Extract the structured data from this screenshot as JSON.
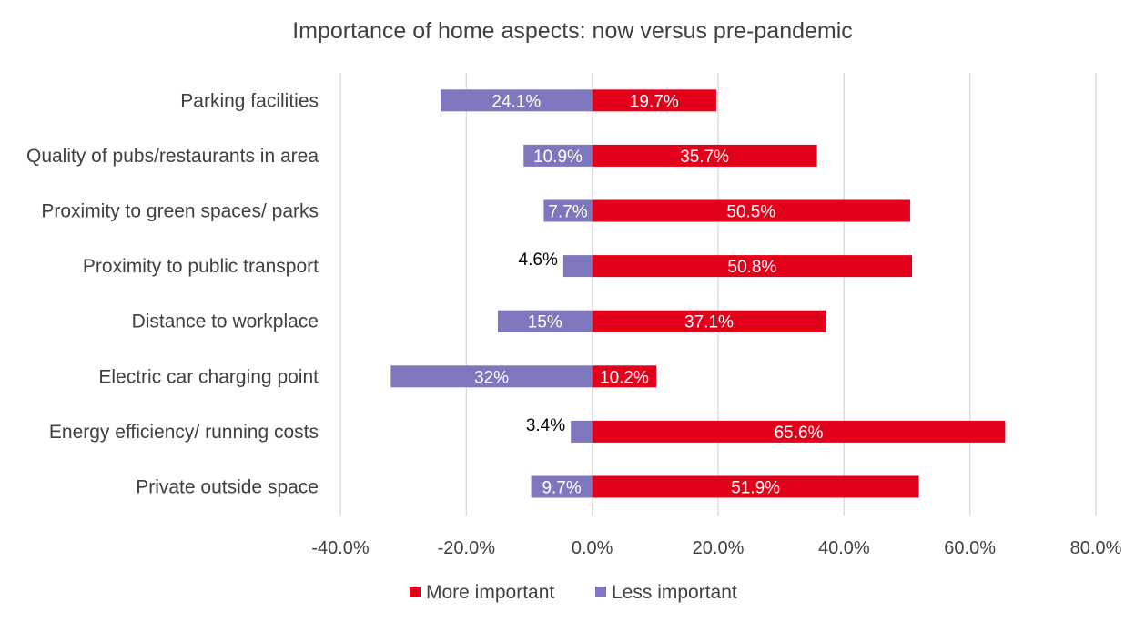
{
  "chart_data": {
    "type": "bar",
    "orientation": "horizontal",
    "stacking": "diverging",
    "title": "Importance of home aspects: now versus pre-pandemic",
    "categories": [
      "Parking facilities",
      "Quality of pubs/restaurants in area",
      "Proximity to green spaces/ parks",
      "Proximity to public transport",
      "Distance to workplace",
      "Electric car charging point",
      "Energy efficiency/ running costs",
      "Private outside space"
    ],
    "series": [
      {
        "name": "More important",
        "color": "#e3001b",
        "values": [
          19.7,
          35.7,
          50.5,
          50.8,
          37.1,
          10.2,
          65.6,
          51.9
        ],
        "labels": [
          "19.7%",
          "35.7%",
          "50.5%",
          "50.8%",
          "37.1%",
          "10.2%",
          "65.6%",
          "51.9%"
        ]
      },
      {
        "name": "Less important",
        "color": "#7f77bd",
        "values": [
          -24.1,
          -10.9,
          -7.7,
          -4.6,
          -15,
          -32,
          -3.4,
          -9.7
        ],
        "labels": [
          "24.1%",
          "10.9%",
          "7.7%",
          "4.6%",
          "15%",
          "32%",
          "3.4%",
          "9.7%"
        ]
      }
    ],
    "xaxis": {
      "min": -40,
      "max": 80,
      "step": 20,
      "tick_labels": [
        "-40.0%",
        "-20.0%",
        "0.0%",
        "20.0%",
        "40.0%",
        "60.0%",
        "80.0%"
      ]
    },
    "grid": true,
    "legend_position": "bottom-center"
  }
}
